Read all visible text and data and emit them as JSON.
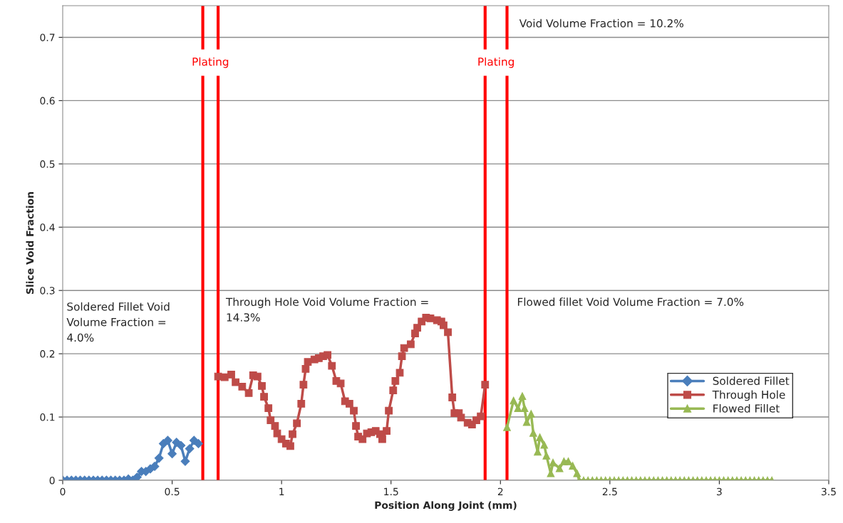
{
  "chart_data": {
    "type": "line",
    "xlabel": "Position Along Joint (mm)",
    "ylabel": "Slice Void Fraction",
    "xlim": [
      0,
      3.5
    ],
    "xticks": [
      0,
      0.5,
      1,
      1.5,
      2,
      2.5,
      3,
      3.5
    ],
    "ylim": [
      0,
      0.75
    ],
    "yticks": [
      0,
      0.1,
      0.2,
      0.3,
      0.4,
      0.5,
      0.6,
      0.7
    ],
    "grid": "y",
    "legend": "bottom right",
    "line_style": "solid",
    "series": [
      {
        "name": "Soldered Fillet",
        "color": "#4a7ebb",
        "marker": "diamond",
        "x": [
          0,
          0.02,
          0.04,
          0.06,
          0.08,
          0.1,
          0.12,
          0.14,
          0.16,
          0.18,
          0.2,
          0.22,
          0.24,
          0.26,
          0.28,
          0.3,
          0.32,
          0.34,
          0.36,
          0.38,
          0.4,
          0.42,
          0.44,
          0.46,
          0.48,
          0.5,
          0.52,
          0.54,
          0.56,
          0.58,
          0.6,
          0.62
        ],
        "values": [
          0,
          0,
          0,
          0,
          0,
          0,
          0,
          0,
          0,
          0,
          0,
          0,
          0,
          0,
          0,
          0.002,
          0,
          0.005,
          0.014,
          0.014,
          0.018,
          0.022,
          0.035,
          0.058,
          0.063,
          0.042,
          0.06,
          0.055,
          0.03,
          0.05,
          0.063,
          0.058
        ]
      },
      {
        "name": "Through Hole",
        "color": "#be4b48",
        "marker": "square",
        "x": [
          0.71,
          0.74,
          0.77,
          0.79,
          0.82,
          0.85,
          0.87,
          0.89,
          0.91,
          0.92,
          0.94,
          0.95,
          0.97,
          0.98,
          1.0,
          1.02,
          1.04,
          1.05,
          1.07,
          1.09,
          1.1,
          1.11,
          1.12,
          1.15,
          1.17,
          1.19,
          1.21,
          1.23,
          1.25,
          1.27,
          1.29,
          1.31,
          1.33,
          1.34,
          1.35,
          1.37,
          1.39,
          1.41,
          1.43,
          1.45,
          1.46,
          1.48,
          1.49,
          1.51,
          1.52,
          1.54,
          1.55,
          1.56,
          1.59,
          1.61,
          1.62,
          1.64,
          1.66,
          1.68,
          1.71,
          1.73,
          1.74,
          1.76,
          1.78,
          1.79,
          1.81,
          1.82,
          1.85,
          1.87,
          1.89,
          1.91,
          1.93
        ],
        "values": [
          0.164,
          0.163,
          0.167,
          0.155,
          0.148,
          0.138,
          0.166,
          0.164,
          0.149,
          0.132,
          0.114,
          0.095,
          0.086,
          0.074,
          0.065,
          0.058,
          0.054,
          0.073,
          0.09,
          0.121,
          0.151,
          0.176,
          0.187,
          0.191,
          0.193,
          0.196,
          0.198,
          0.181,
          0.157,
          0.153,
          0.125,
          0.121,
          0.11,
          0.086,
          0.069,
          0.065,
          0.074,
          0.076,
          0.078,
          0.073,
          0.065,
          0.078,
          0.11,
          0.142,
          0.157,
          0.17,
          0.196,
          0.209,
          0.215,
          0.232,
          0.241,
          0.251,
          0.257,
          0.256,
          0.253,
          0.251,
          0.245,
          0.234,
          0.131,
          0.106,
          0.106,
          0.099,
          0.091,
          0.088,
          0.095,
          0.101,
          0.151
        ]
      },
      {
        "name": "Flowed Fillet",
        "color": "#98b954",
        "marker": "triangle",
        "x": [
          2.03,
          2.06,
          2.08,
          2.1,
          2.11,
          2.12,
          2.14,
          2.15,
          2.17,
          2.18,
          2.2,
          2.21,
          2.23,
          2.24,
          2.27,
          2.29,
          2.31,
          2.33,
          2.35,
          2.36,
          2.38,
          2.4,
          2.42,
          2.44,
          2.46,
          2.48,
          2.5,
          2.52,
          2.54,
          2.56,
          2.58,
          2.6,
          2.62,
          2.64,
          2.66,
          2.68,
          2.7,
          2.72,
          2.74,
          2.76,
          2.78,
          2.8,
          2.82,
          2.84,
          2.86,
          2.88,
          2.9,
          2.92,
          2.94,
          2.96,
          2.98,
          3.0,
          3.02,
          3.04,
          3.06,
          3.08,
          3.1,
          3.12,
          3.14,
          3.16,
          3.18,
          3.2,
          3.22,
          3.24
        ],
        "values": [
          0.084,
          0.126,
          0.114,
          0.133,
          0.114,
          0.092,
          0.105,
          0.075,
          0.045,
          0.068,
          0.056,
          0.039,
          0.011,
          0.028,
          0.019,
          0.03,
          0.03,
          0.023,
          0.011,
          0,
          0,
          0,
          0,
          0,
          0,
          0,
          0,
          0,
          0,
          0,
          0,
          0,
          0,
          0,
          0,
          0,
          0,
          0,
          0,
          0,
          0,
          0,
          0,
          0,
          0,
          0,
          0,
          0,
          0,
          0,
          0,
          0,
          0,
          0,
          0,
          0,
          0,
          0,
          0,
          0,
          0,
          0,
          0,
          0
        ]
      }
    ],
    "ref_lines": [
      {
        "axis": "x",
        "value": 0.64,
        "label": "Plating",
        "color": "#ff0000"
      },
      {
        "axis": "x",
        "value": 0.71,
        "color": "#ff0000"
      },
      {
        "axis": "x",
        "value": 1.93,
        "label": "Plating",
        "color": "#ff0000"
      },
      {
        "axis": "x",
        "value": 2.03,
        "color": "#ff0000"
      }
    ],
    "annotations": [
      "Soldered Fillet Void\nVolume Fraction =\n4.0%",
      "Through Hole Void Volume Fraction =\n14.3%",
      "Flowed fillet Void Volume Fraction = 7.0%",
      "Void Volume Fraction = 10.2%"
    ]
  }
}
